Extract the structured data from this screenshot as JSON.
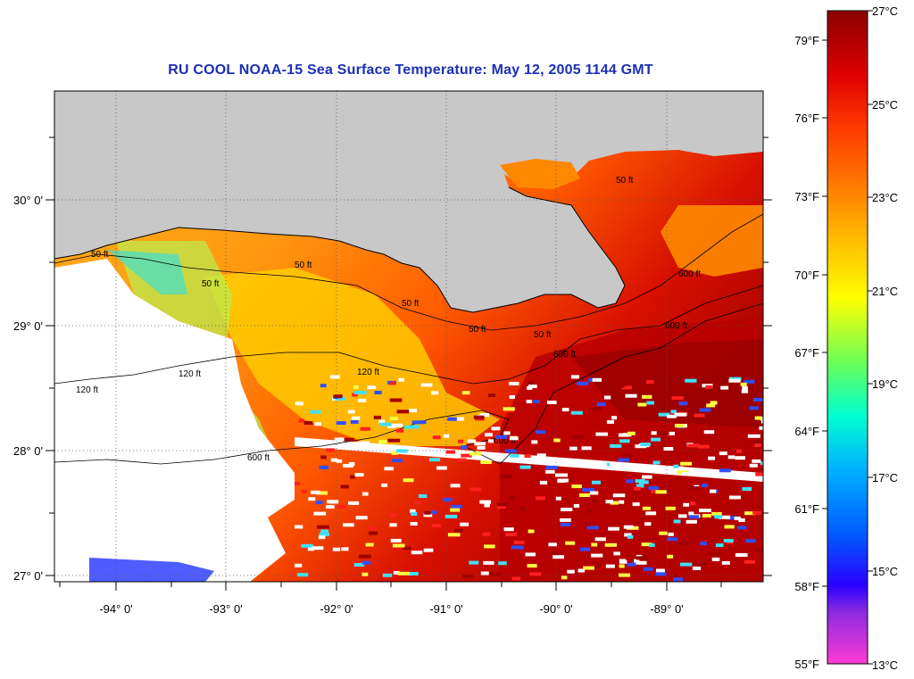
{
  "title": "RU COOL  NOAA-15  Sea Surface Temperature:  May 12, 2005 1144 GMT",
  "map": {
    "lon_labels": [
      "-94° 0'",
      "-93° 0'",
      "-92° 0'",
      "-91° 0'",
      "-90° 0'",
      "-89° 0'"
    ],
    "lat_labels": [
      "30° 0'",
      "29° 0'",
      "28° 0'",
      "27° 0'"
    ],
    "isobath_labels": [
      "50 ft",
      "50 ft",
      "50 ft",
      "50 ft",
      "50 ft",
      "50 ft",
      "50 ft",
      "120 ft",
      "120 ft",
      "120 ft",
      "600 ft",
      "600 ft",
      "600 ft",
      "600 ft",
      "600 ft"
    ],
    "colors": {
      "land": "#c8c8c8",
      "no_data": "#ffffff",
      "title": "#1c2fb5"
    }
  },
  "colorbar": {
    "fahrenheit_labels": [
      "79°F",
      "76°F",
      "73°F",
      "70°F",
      "67°F",
      "64°F",
      "61°F",
      "58°F",
      "55°F"
    ],
    "celsius_labels": [
      "27°C",
      "25°C",
      "23°C",
      "21°C",
      "19°C",
      "17°C",
      "15°C",
      "13°C"
    ],
    "colors": [
      "#ff3ad2",
      "#8b2be0",
      "#2a00ff",
      "#005cff",
      "#00b4ff",
      "#00ffd0",
      "#6aff5a",
      "#ffff00",
      "#ffc400",
      "#ff8400",
      "#ff3a00",
      "#e00000",
      "#8b0000"
    ]
  }
}
